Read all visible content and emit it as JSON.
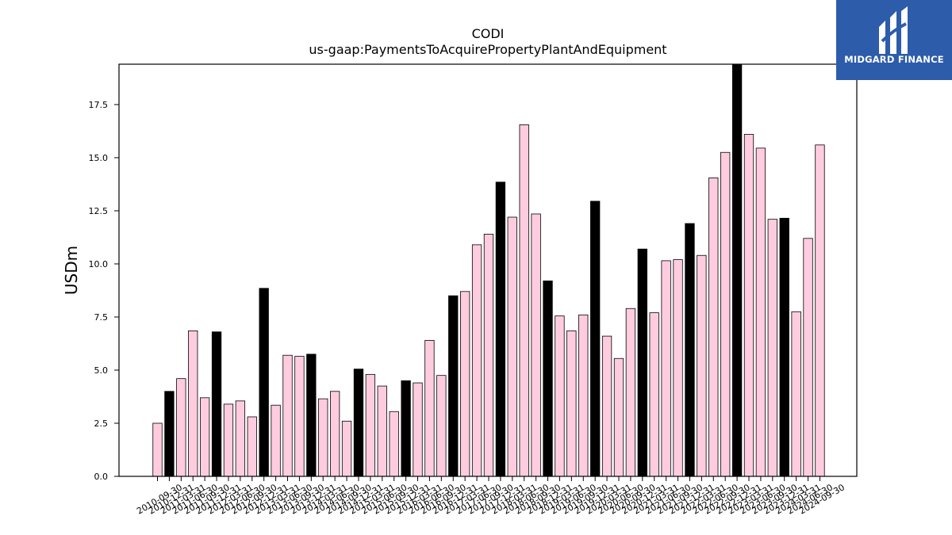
{
  "chart_data": {
    "type": "bar",
    "title": "CODI",
    "subtitle": "us-gaap:PaymentsToAcquirePropertyPlantAndEquipment",
    "ylabel": "USDm",
    "xlabel": "",
    "ylim": [
      0,
      19.4
    ],
    "yticks": [
      "0.0",
      "2.5",
      "5.0",
      "7.5",
      "10.0",
      "12.5",
      "15.0",
      "17.5"
    ],
    "categories": [
      "2010-09-30",
      "2010-12-31",
      "2011-03-31",
      "2011-06-30",
      "2011-09-30",
      "2011-12-31",
      "2012-03-31",
      "2012-06-30",
      "2012-09-30",
      "2012-12-31",
      "2013-03-31",
      "2013-06-30",
      "2013-09-30",
      "2013-12-31",
      "2014-03-31",
      "2014-06-30",
      "2014-09-30",
      "2014-12-31",
      "2015-03-31",
      "2015-06-30",
      "2015-09-30",
      "2015-12-31",
      "2016-03-31",
      "2016-06-30",
      "2016-09-30",
      "2016-12-31",
      "2017-03-31",
      "2017-06-30",
      "2017-09-30",
      "2017-12-31",
      "2018-03-31",
      "2018-06-30",
      "2018-09-30",
      "2018-12-31",
      "2019-03-31",
      "2019-06-30",
      "2019-09-30",
      "2019-12-31",
      "2020-03-31",
      "2020-06-30",
      "2020-09-30",
      "2020-12-31",
      "2021-03-31",
      "2021-06-30",
      "2021-09-30",
      "2021-12-31",
      "2022-03-31",
      "2022-06-30",
      "2022-09-30",
      "2022-12-31",
      "2023-03-31",
      "2023-06-30",
      "2023-09-30",
      "2023-12-31",
      "2024-03-31",
      "2024-06-30",
      "2024-09-30"
    ],
    "values": [
      2.5,
      4.0,
      4.6,
      6.85,
      3.7,
      6.8,
      3.4,
      3.55,
      2.8,
      8.85,
      3.35,
      5.7,
      5.65,
      5.75,
      3.65,
      4.0,
      2.6,
      5.05,
      4.8,
      4.25,
      3.05,
      4.5,
      4.4,
      6.4,
      4.75,
      8.5,
      8.7,
      10.9,
      11.4,
      13.85,
      12.2,
      16.55,
      12.35,
      9.2,
      7.55,
      6.85,
      7.6,
      12.95,
      6.6,
      5.55,
      7.9,
      10.7,
      7.7,
      10.15,
      10.2,
      11.9,
      10.4,
      14.05,
      15.25,
      19.4,
      16.1,
      15.45,
      12.1,
      12.15,
      7.75,
      11.2,
      15.6
    ],
    "highlight_indices": [
      1,
      5,
      9,
      13,
      17,
      21,
      25,
      29,
      33,
      37,
      41,
      45,
      49,
      53
    ],
    "colors": {
      "bar": "#ffccdf",
      "highlight": "#000000",
      "edge": "#000000"
    },
    "grid": false,
    "legend": "none"
  },
  "logo": {
    "text": "MIDGARD FINANCE",
    "color": "#2d5caa"
  }
}
